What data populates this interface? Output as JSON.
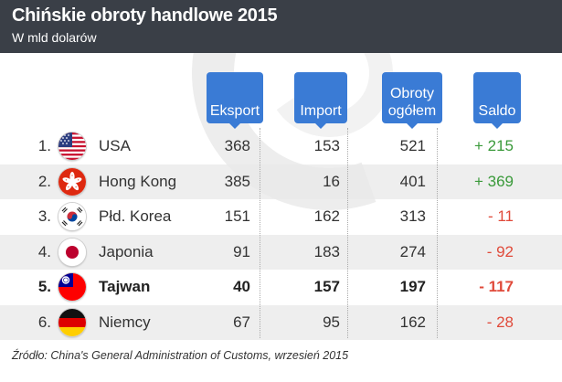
{
  "header": {
    "title": "Chińskie obroty handlowe 2015",
    "subtitle": "W mld dolarów"
  },
  "columns": [
    "Eksport",
    "Import",
    "Obroty ogółem",
    "Saldo"
  ],
  "chart_data": {
    "type": "table",
    "title": "Chińskie obroty handlowe 2015",
    "subtitle": "W mld dolarów",
    "columns": [
      "Eksport",
      "Import",
      "Obroty ogółem",
      "Saldo"
    ],
    "rows": [
      {
        "rank": "1.",
        "country": "USA",
        "flag": "usa-flag",
        "eksport": "368",
        "import": "153",
        "obroty": "521",
        "saldo": "+ 215",
        "saldo_value": 215
      },
      {
        "rank": "2.",
        "country": "Hong Kong",
        "flag": "hong-kong-flag",
        "eksport": "385",
        "import": "16",
        "obroty": "401",
        "saldo": "+ 369",
        "saldo_value": 369
      },
      {
        "rank": "3.",
        "country": "Płd. Korea",
        "flag": "south-korea-flag",
        "eksport": "151",
        "import": "162",
        "obroty": "313",
        "saldo": "- 11",
        "saldo_value": -11
      },
      {
        "rank": "4.",
        "country": "Japonia",
        "flag": "japan-flag",
        "eksport": "91",
        "import": "183",
        "obroty": "274",
        "saldo": "- 92",
        "saldo_value": -92
      },
      {
        "rank": "5.",
        "country": "Tajwan",
        "flag": "taiwan-flag",
        "eksport": "40",
        "import": "157",
        "obroty": "197",
        "saldo": "- 117",
        "saldo_value": -117,
        "bold": true
      },
      {
        "rank": "6.",
        "country": "Niemcy",
        "flag": "germany-flag",
        "eksport": "67",
        "import": "95",
        "obroty": "162",
        "saldo": "- 28",
        "saldo_value": -28
      }
    ]
  },
  "colors": {
    "header_bg": "#3a3f47",
    "column_header_bg": "#3a7bd5",
    "positive": "#3a9a3a",
    "negative": "#e04a3a",
    "row_shade": "#e8e8e8"
  },
  "source": "Źródło: China's General Administration of Customs, wrzesień 2015"
}
